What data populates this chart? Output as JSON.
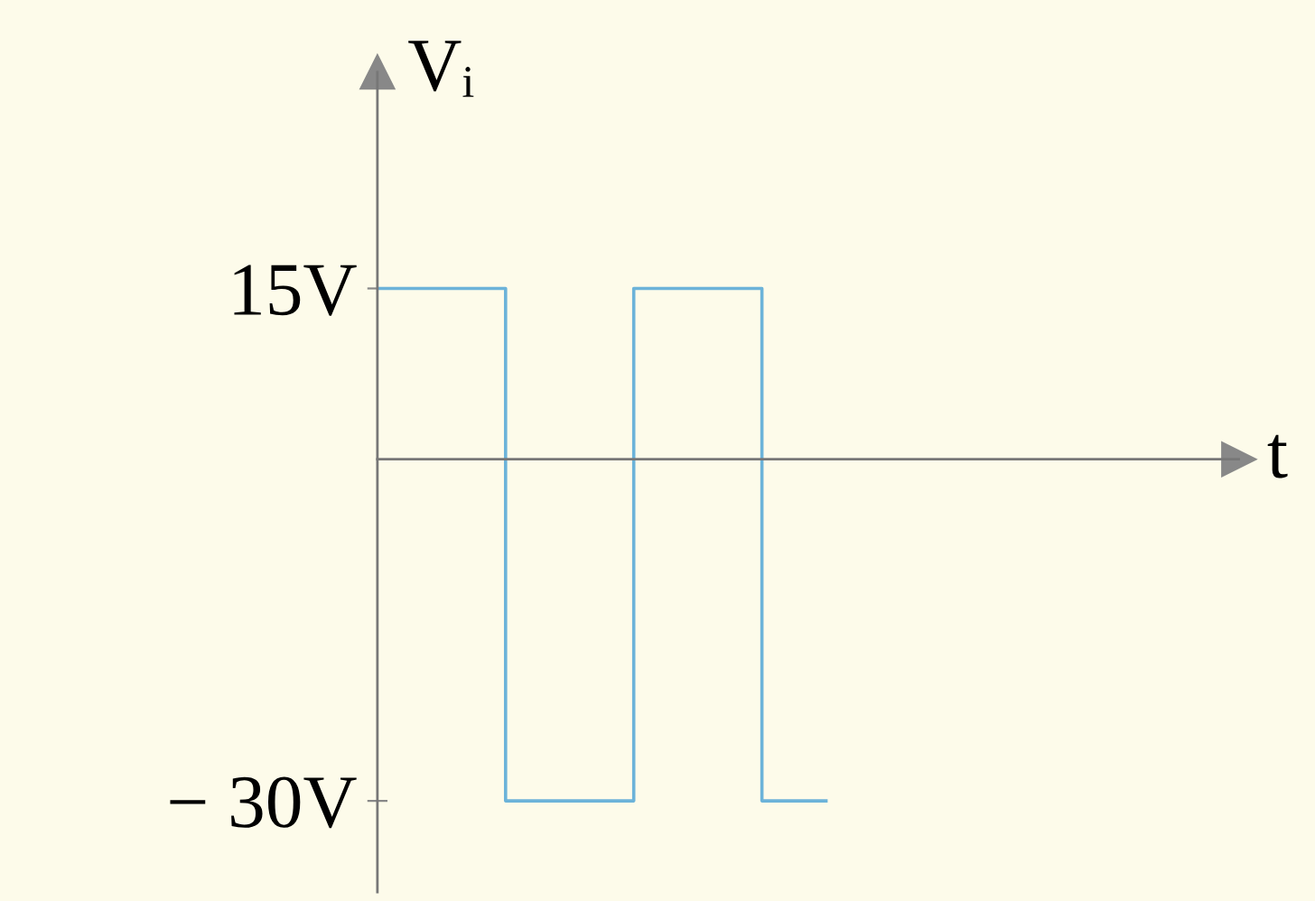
{
  "chart_data": {
    "type": "step",
    "ylabel": "Vᵢ",
    "annotations": [
      "t"
    ],
    "categories": [
      null,
      null,
      null,
      null,
      null,
      null,
      null,
      null
    ],
    "series": [
      {
        "color": "#6cb3d9",
        "values": [
          15,
          15,
          -30,
          -30,
          15,
          15,
          -30,
          -30
        ]
      }
    ],
    "ylim": [
      -38,
      34
    ],
    "yticks": [
      {
        "value": 15,
        "label": "15V"
      },
      {
        "value": -30,
        "label": "− 30V"
      }
    ],
    "tick_labels": "y",
    "grid": false,
    "legend": false
  }
}
